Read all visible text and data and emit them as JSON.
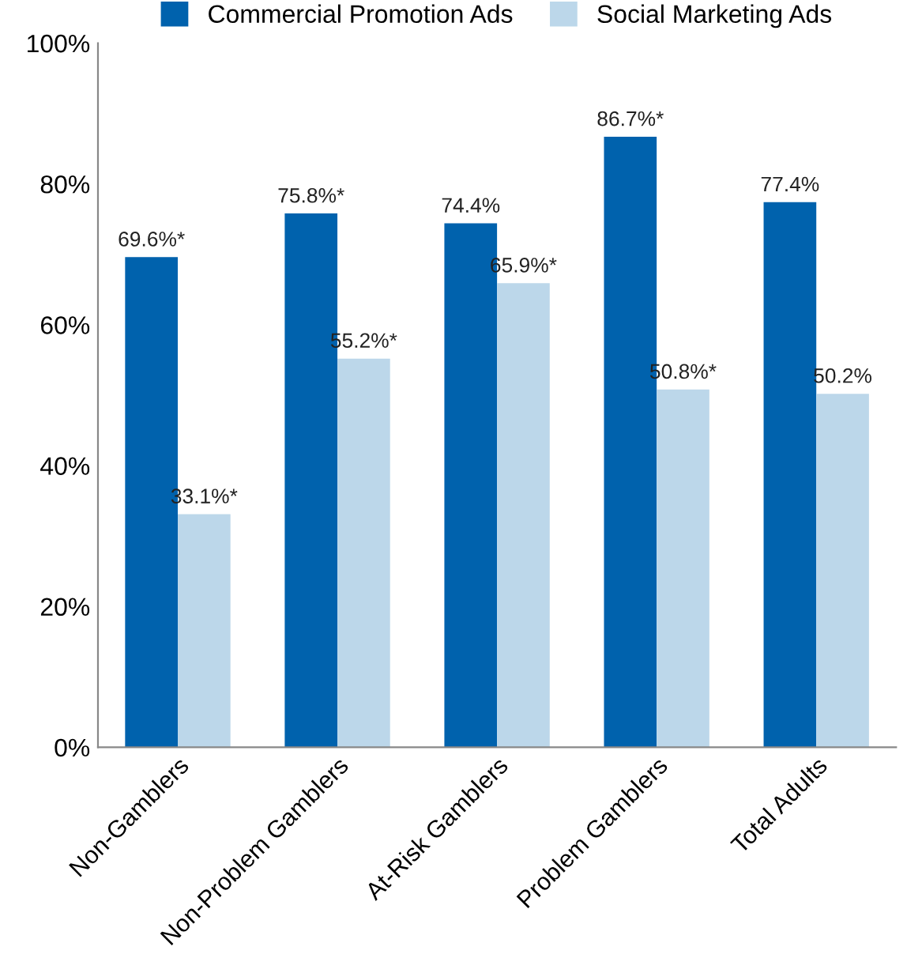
{
  "chart_data": {
    "type": "bar",
    "categories": [
      "Non-Gamblers",
      "Non-Problem Gamblers",
      "At-Risk Gamblers",
      "Problem Gamblers",
      "Total Adults"
    ],
    "series": [
      {
        "name": "Commercial Promotion Ads",
        "color": "#0062ad",
        "values": [
          69.6,
          75.8,
          74.4,
          86.7,
          77.4
        ],
        "value_labels": [
          "69.6%*",
          "75.8%*",
          "74.4%",
          "86.7%*",
          "77.4%"
        ]
      },
      {
        "name": "Social Marketing Ads",
        "color": "#bcd7ea",
        "values": [
          33.1,
          55.2,
          65.9,
          50.8,
          50.2
        ],
        "value_labels": [
          "33.1%*",
          "55.2%*",
          "65.9%*",
          "50.8%*",
          "50.2%"
        ]
      }
    ],
    "ylim": [
      0,
      100
    ],
    "yticks": [
      {
        "value": 0,
        "label": "0%"
      },
      {
        "value": 20,
        "label": "20%"
      },
      {
        "value": 40,
        "label": "40%"
      },
      {
        "value": 60,
        "label": "60%"
      },
      {
        "value": 80,
        "label": "80%"
      },
      {
        "value": 100,
        "label": "100%"
      }
    ],
    "legend": "top",
    "grid": false
  }
}
